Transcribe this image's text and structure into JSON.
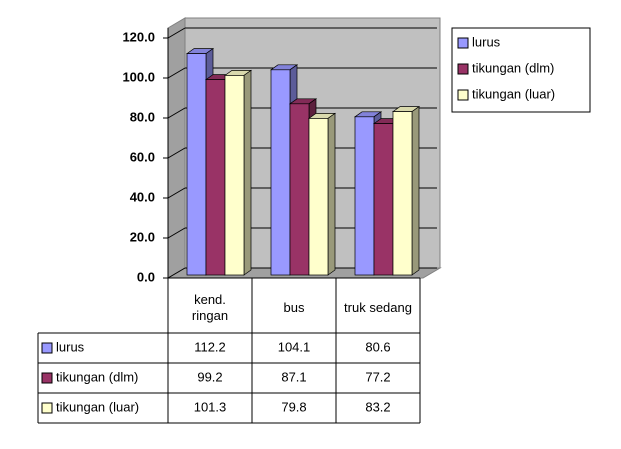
{
  "chart_data": {
    "type": "bar3d",
    "categories": [
      "kend. ringan",
      "bus",
      "truk sedang"
    ],
    "series": [
      {
        "name": "lurus",
        "color": "#9999ff",
        "values": [
          112.2,
          104.1,
          80.6
        ]
      },
      {
        "name": "tikungan (dlm)",
        "color": "#993366",
        "values": [
          99.2,
          87.1,
          77.2
        ]
      },
      {
        "name": "tikungan (luar)",
        "color": "#ffffcc",
        "values": [
          101.3,
          79.8,
          83.2
        ]
      }
    ],
    "ylim": [
      0,
      120
    ],
    "yticks": [
      {
        "value": 0,
        "label": "0.0"
      },
      {
        "value": 20,
        "label": "20.0"
      },
      {
        "value": 40,
        "label": "40.0"
      },
      {
        "value": 60,
        "label": "60.0"
      },
      {
        "value": 80,
        "label": "80.0"
      },
      {
        "value": 100,
        "label": "100.0"
      },
      {
        "value": 120,
        "label": "120.0"
      }
    ],
    "grid": true,
    "legend": "right",
    "data_table": true
  }
}
